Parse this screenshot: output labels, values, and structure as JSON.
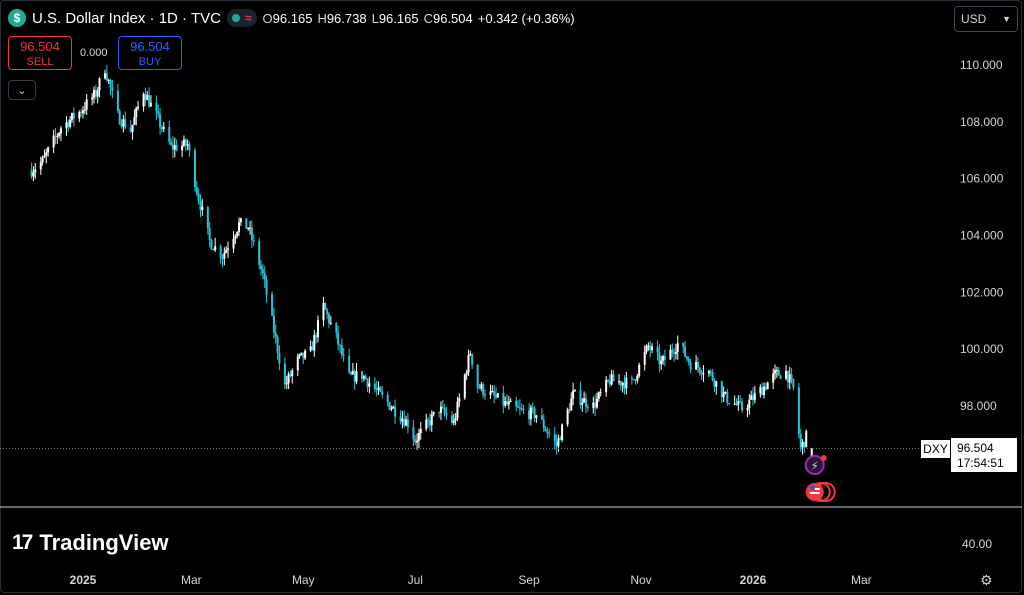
{
  "header": {
    "title": "U.S. Dollar Index · 1D · TVC",
    "symbol_icon": "dollar-icon",
    "ohlc": [
      {
        "l": "O",
        "v": "96.165"
      },
      {
        "l": "H",
        "v": "96.738"
      },
      {
        "l": "L",
        "v": "96.165"
      },
      {
        "l": "C",
        "v": "96.504"
      }
    ],
    "change": "+0.342 (+0.36%)"
  },
  "trade": {
    "sell_price": "96.504",
    "sell_label": "SELL",
    "buy_price": "96.504",
    "buy_label": "BUY",
    "spread": "0.000"
  },
  "currency": "USD",
  "logo": "TradingView",
  "lower_pane_value": "40.00",
  "last": {
    "symbol": "DXY",
    "price": "96.504",
    "countdown": "17:54:51"
  },
  "colors": {
    "up": "#ffffff",
    "down": "#26c6da",
    "background": "#000000",
    "text": "#d1d4dc"
  },
  "chart_data": {
    "type": "candlestick",
    "ylim": [
      95.0,
      111.5
    ],
    "yticks": [
      "110.000",
      "108.000",
      "106.000",
      "104.000",
      "102.000",
      "100.000",
      "98.000"
    ],
    "xticks": [
      "2025",
      "Mar",
      "May",
      "Jul",
      "Sep",
      "Nov",
      "2026",
      "Mar"
    ],
    "path": [
      [
        "2024-12-04",
        106.3
      ],
      [
        "2024-12-10",
        106.6
      ],
      [
        "2024-12-20",
        107.8
      ],
      [
        "2024-12-31",
        108.4
      ],
      [
        "2025-01-08",
        109.0
      ],
      [
        "2025-01-13",
        109.9
      ],
      [
        "2025-01-20",
        108.2
      ],
      [
        "2025-01-27",
        107.7
      ],
      [
        "2025-02-03",
        109.1
      ],
      [
        "2025-02-10",
        108.2
      ],
      [
        "2025-02-18",
        107.1
      ],
      [
        "2025-02-27",
        107.2
      ],
      [
        "2025-03-04",
        105.6
      ],
      [
        "2025-03-11",
        103.8
      ],
      [
        "2025-03-18",
        103.3
      ],
      [
        "2025-03-27",
        104.4
      ],
      [
        "2025-04-01",
        104.3
      ],
      [
        "2025-04-09",
        102.6
      ],
      [
        "2025-04-21",
        98.7
      ],
      [
        "2025-04-28",
        99.6
      ],
      [
        "2025-05-05",
        99.9
      ],
      [
        "2025-05-12",
        101.5
      ],
      [
        "2025-05-19",
        100.4
      ],
      [
        "2025-05-26",
        99.0
      ],
      [
        "2025-06-02",
        99.1
      ],
      [
        "2025-06-13",
        98.3
      ],
      [
        "2025-06-27",
        97.4
      ],
      [
        "2025-07-01",
        96.8
      ],
      [
        "2025-07-14",
        97.9
      ],
      [
        "2025-07-22",
        97.4
      ],
      [
        "2025-07-31",
        99.9
      ],
      [
        "2025-08-04",
        98.7
      ],
      [
        "2025-08-18",
        98.1
      ],
      [
        "2025-08-28",
        97.8
      ],
      [
        "2025-09-05",
        97.7
      ],
      [
        "2025-09-16",
        96.6
      ],
      [
        "2025-09-25",
        98.4
      ],
      [
        "2025-10-06",
        98.0
      ],
      [
        "2025-10-15",
        98.9
      ],
      [
        "2025-10-27",
        98.8
      ],
      [
        "2025-11-05",
        100.1
      ],
      [
        "2025-11-12",
        99.5
      ],
      [
        "2025-11-21",
        100.2
      ],
      [
        "2025-11-28",
        99.5
      ],
      [
        "2025-12-08",
        99.2
      ],
      [
        "2025-12-17",
        98.3
      ],
      [
        "2025-12-26",
        97.9
      ],
      [
        "2026-01-06",
        98.6
      ],
      [
        "2026-01-13",
        99.1
      ],
      [
        "2026-01-19",
        99.2
      ],
      [
        "2026-01-23",
        98.6
      ],
      [
        "2026-01-27",
        96.5
      ],
      [
        "2026-01-30",
        96.9
      ],
      [
        "2026-02-02",
        96.5
      ]
    ],
    "last_price": 96.504,
    "last_date": "2026-02-02",
    "events": [
      {
        "name": "flash-icon"
      },
      {
        "name": "us-flag-icon"
      }
    ]
  }
}
